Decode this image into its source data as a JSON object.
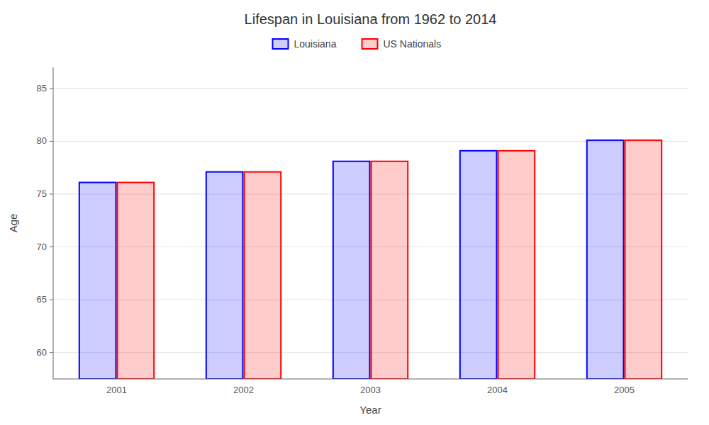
{
  "chart_data": {
    "type": "bar",
    "title": "Lifespan in Louisiana from 1962 to 2014",
    "x_label": "Year",
    "y_label": "Age",
    "categories": [
      "2001",
      "2002",
      "2003",
      "2004",
      "2005"
    ],
    "series": [
      {
        "name": "Louisiana",
        "color": "#0000ff",
        "values": [
          76.1,
          77.1,
          78.1,
          79.1,
          80.1
        ]
      },
      {
        "name": "US Nationals",
        "color": "#ff0000",
        "values": [
          76.1,
          77.1,
          78.1,
          79.1,
          80.1
        ]
      }
    ],
    "ylim": [
      57.5,
      87
    ],
    "yticks": [
      60,
      65,
      70,
      75,
      80,
      85
    ],
    "grid": true,
    "legend": "top"
  }
}
